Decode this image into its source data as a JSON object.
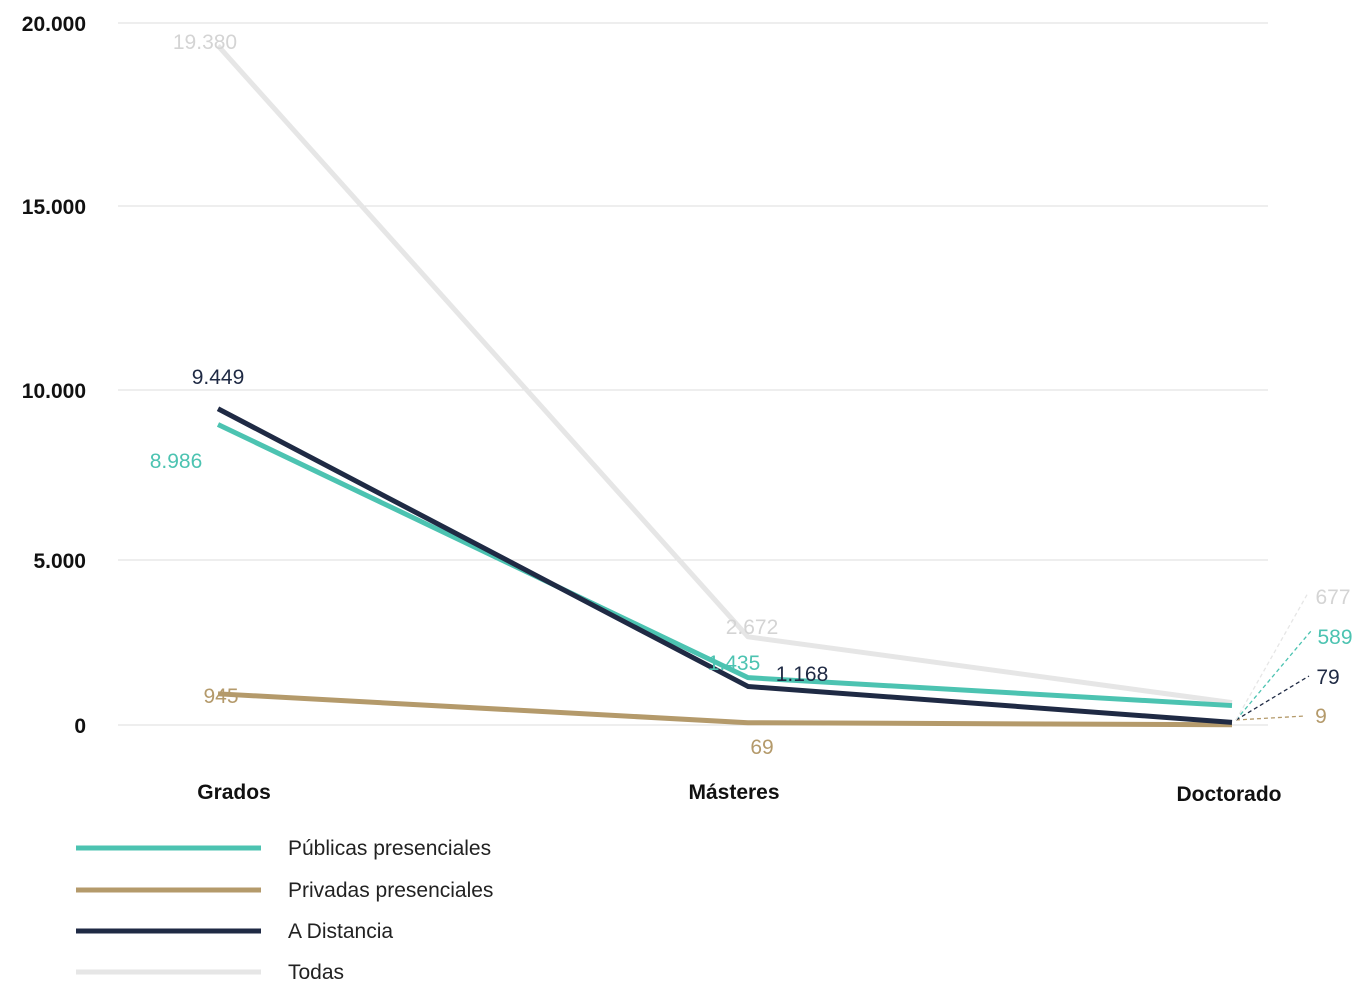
{
  "chart_data": {
    "type": "line",
    "categories": [
      "Grados",
      "Másteres",
      "Doctorado"
    ],
    "y_ticks": [
      "20.000",
      "15.000",
      "10.000",
      "5.000",
      "0"
    ],
    "y_tick_values": [
      20000,
      15000,
      10000,
      5000,
      0
    ],
    "ylim": [
      0,
      20000
    ],
    "grid": true,
    "legend_position": "bottom-left",
    "series": [
      {
        "name": "Públicas presenciales",
        "color": "#4cc3b1",
        "values": [
          8986,
          1435,
          589
        ],
        "labels": [
          "8.986",
          "1.435",
          "589"
        ]
      },
      {
        "name": "Privadas presenciales",
        "color": "#b49a6b",
        "values": [
          945,
          69,
          9
        ],
        "labels": [
          "945",
          "69",
          "9"
        ]
      },
      {
        "name": "A Distancia",
        "color": "#1f2a44",
        "values": [
          9449,
          1168,
          79
        ],
        "labels": [
          "9.449",
          "1.168",
          "79"
        ]
      },
      {
        "name": "Todas",
        "color": "#e6e6e6",
        "values": [
          19380,
          2672,
          677
        ],
        "labels": [
          "19.380",
          "2.672",
          "677"
        ]
      }
    ]
  }
}
